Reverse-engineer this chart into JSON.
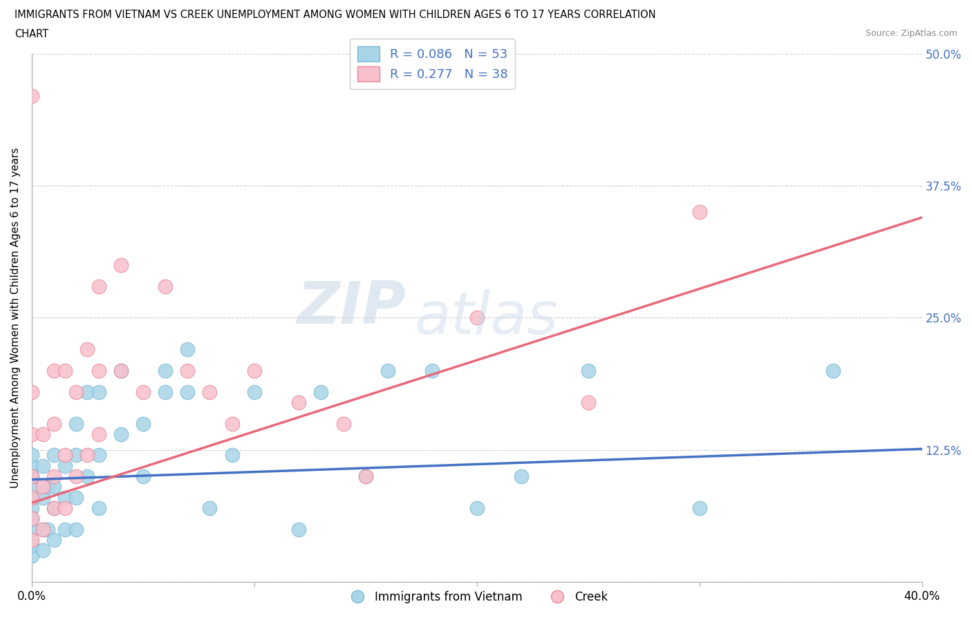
{
  "title_line1": "IMMIGRANTS FROM VIETNAM VS CREEK UNEMPLOYMENT AMONG WOMEN WITH CHILDREN AGES 6 TO 17 YEARS CORRELATION",
  "title_line2": "CHART",
  "source": "Source: ZipAtlas.com",
  "ylabel": "Unemployment Among Women with Children Ages 6 to 17 years",
  "xlim": [
    0.0,
    0.4
  ],
  "ylim": [
    0.0,
    0.5
  ],
  "xticks": [
    0.0,
    0.1,
    0.2,
    0.3,
    0.4
  ],
  "xtick_labels": [
    "0.0%",
    "",
    "",
    "",
    "40.0%"
  ],
  "yticks": [
    0.0,
    0.125,
    0.25,
    0.375,
    0.5
  ],
  "ytick_labels": [
    "",
    "12.5%",
    "25.0%",
    "37.5%",
    "50.0%"
  ],
  "blue_color": "#A8D5E8",
  "blue_edge_color": "#7BB8D4",
  "pink_color": "#F8C0CC",
  "pink_edge_color": "#E8879A",
  "blue_line_color": "#4472C4",
  "pink_line_color": "#E8687A",
  "legend_blue_label": "R = 0.086   N = 53",
  "legend_pink_label": "R = 0.277   N = 38",
  "bottom_legend_blue": "Immigrants from Vietnam",
  "bottom_legend_pink": "Creek",
  "watermark_zip": "ZIP",
  "watermark_atlas": "atlas",
  "blue_x": [
    0.0,
    0.0,
    0.0,
    0.0,
    0.0,
    0.0,
    0.0,
    0.0,
    0.0,
    0.0,
    0.005,
    0.005,
    0.005,
    0.005,
    0.007,
    0.007,
    0.01,
    0.01,
    0.01,
    0.01,
    0.015,
    0.015,
    0.015,
    0.02,
    0.02,
    0.02,
    0.02,
    0.025,
    0.025,
    0.03,
    0.03,
    0.03,
    0.04,
    0.04,
    0.05,
    0.05,
    0.06,
    0.06,
    0.07,
    0.07,
    0.08,
    0.09,
    0.1,
    0.12,
    0.13,
    0.15,
    0.16,
    0.18,
    0.2,
    0.22,
    0.25,
    0.3,
    0.36
  ],
  "blue_y": [
    0.025,
    0.035,
    0.05,
    0.06,
    0.07,
    0.08,
    0.09,
    0.1,
    0.11,
    0.12,
    0.03,
    0.05,
    0.08,
    0.11,
    0.05,
    0.09,
    0.04,
    0.07,
    0.09,
    0.12,
    0.05,
    0.08,
    0.11,
    0.05,
    0.08,
    0.12,
    0.15,
    0.1,
    0.18,
    0.07,
    0.12,
    0.18,
    0.14,
    0.2,
    0.15,
    0.1,
    0.18,
    0.2,
    0.18,
    0.22,
    0.07,
    0.12,
    0.18,
    0.05,
    0.18,
    0.1,
    0.2,
    0.2,
    0.07,
    0.1,
    0.2,
    0.07,
    0.2
  ],
  "pink_x": [
    0.0,
    0.0,
    0.0,
    0.0,
    0.0,
    0.0,
    0.0,
    0.005,
    0.005,
    0.005,
    0.01,
    0.01,
    0.01,
    0.01,
    0.015,
    0.015,
    0.015,
    0.02,
    0.02,
    0.025,
    0.025,
    0.03,
    0.03,
    0.03,
    0.04,
    0.04,
    0.05,
    0.06,
    0.07,
    0.08,
    0.09,
    0.1,
    0.12,
    0.14,
    0.15,
    0.2,
    0.25,
    0.3
  ],
  "pink_y": [
    0.04,
    0.06,
    0.08,
    0.1,
    0.14,
    0.18,
    0.46,
    0.05,
    0.09,
    0.14,
    0.07,
    0.1,
    0.15,
    0.2,
    0.07,
    0.12,
    0.2,
    0.1,
    0.18,
    0.12,
    0.22,
    0.14,
    0.2,
    0.28,
    0.2,
    0.3,
    0.18,
    0.28,
    0.2,
    0.18,
    0.15,
    0.2,
    0.17,
    0.15,
    0.1,
    0.25,
    0.17,
    0.35
  ]
}
